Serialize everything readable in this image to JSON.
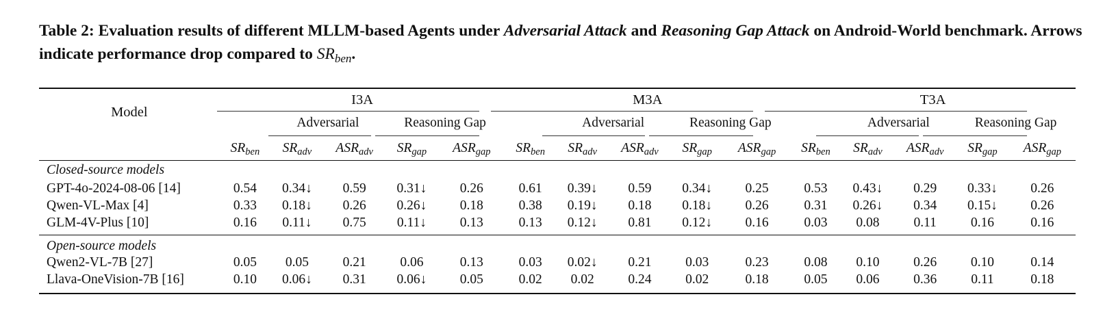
{
  "caption": {
    "label": "Table 2:",
    "p1": "Evaluation results of different MLLM-based Agents under",
    "em1": "Adversarial Attack",
    "p2": "and",
    "em2": "Reasoning Gap Attack",
    "p3": "on Android-World benchmark. Arrows indicate performance drop compared to",
    "sr_main": "SR",
    "sr_sub": "ben",
    "p4": "."
  },
  "table": {
    "model_header": "Model",
    "groups": [
      "I3A",
      "M3A",
      "T3A"
    ],
    "attack_headers": [
      "Adversarial",
      "Reasoning Gap"
    ],
    "column_headers": [
      {
        "main": "SR",
        "sub": "ben"
      },
      {
        "main": "SR",
        "sub": "adv"
      },
      {
        "main": "ASR",
        "sub": "adv"
      },
      {
        "main": "SR",
        "sub": "gap"
      },
      {
        "main": "ASR",
        "sub": "gap"
      }
    ],
    "arrow": "↓",
    "sections": [
      {
        "title": "Closed-source models",
        "rows": [
          {
            "model": "GPT-4o-2024-08-06 [14]",
            "cells": [
              {
                "v": "0.54"
              },
              {
                "v": "0.34",
                "drop": true
              },
              {
                "v": "0.59"
              },
              {
                "v": "0.31",
                "drop": true
              },
              {
                "v": "0.26"
              },
              {
                "v": "0.61"
              },
              {
                "v": "0.39",
                "drop": true
              },
              {
                "v": "0.59"
              },
              {
                "v": "0.34",
                "drop": true
              },
              {
                "v": "0.25"
              },
              {
                "v": "0.53"
              },
              {
                "v": "0.43",
                "drop": true
              },
              {
                "v": "0.29"
              },
              {
                "v": "0.33",
                "drop": true
              },
              {
                "v": "0.26"
              }
            ]
          },
          {
            "model": "Qwen-VL-Max [4]",
            "cells": [
              {
                "v": "0.33"
              },
              {
                "v": "0.18",
                "drop": true
              },
              {
                "v": "0.26"
              },
              {
                "v": "0.26",
                "drop": true
              },
              {
                "v": "0.18"
              },
              {
                "v": "0.38"
              },
              {
                "v": "0.19",
                "drop": true
              },
              {
                "v": "0.18"
              },
              {
                "v": "0.18",
                "drop": true
              },
              {
                "v": "0.26"
              },
              {
                "v": "0.31"
              },
              {
                "v": "0.26",
                "drop": true
              },
              {
                "v": "0.34"
              },
              {
                "v": "0.15",
                "drop": true
              },
              {
                "v": "0.26"
              }
            ]
          },
          {
            "model": "GLM-4V-Plus [10]",
            "cells": [
              {
                "v": "0.16"
              },
              {
                "v": "0.11",
                "drop": true
              },
              {
                "v": "0.75"
              },
              {
                "v": "0.11",
                "drop": true
              },
              {
                "v": "0.13"
              },
              {
                "v": "0.13"
              },
              {
                "v": "0.12",
                "drop": true
              },
              {
                "v": "0.81"
              },
              {
                "v": "0.12",
                "drop": true
              },
              {
                "v": "0.16"
              },
              {
                "v": "0.03"
              },
              {
                "v": "0.08"
              },
              {
                "v": "0.11"
              },
              {
                "v": "0.16"
              },
              {
                "v": "0.16"
              }
            ]
          }
        ]
      },
      {
        "title": "Open-source models",
        "rows": [
          {
            "model": "Qwen2-VL-7B [27]",
            "cells": [
              {
                "v": "0.05"
              },
              {
                "v": "0.05"
              },
              {
                "v": "0.21"
              },
              {
                "v": "0.06"
              },
              {
                "v": "0.13"
              },
              {
                "v": "0.03"
              },
              {
                "v": "0.02",
                "drop": true
              },
              {
                "v": "0.21"
              },
              {
                "v": "0.03"
              },
              {
                "v": "0.23"
              },
              {
                "v": "0.08"
              },
              {
                "v": "0.10"
              },
              {
                "v": "0.26"
              },
              {
                "v": "0.10"
              },
              {
                "v": "0.14"
              }
            ]
          },
          {
            "model": "Llava-OneVision-7B [16]",
            "cells": [
              {
                "v": "0.10"
              },
              {
                "v": "0.06",
                "drop": true
              },
              {
                "v": "0.31"
              },
              {
                "v": "0.06",
                "drop": true
              },
              {
                "v": "0.05"
              },
              {
                "v": "0.02"
              },
              {
                "v": "0.02"
              },
              {
                "v": "0.24"
              },
              {
                "v": "0.02"
              },
              {
                "v": "0.18"
              },
              {
                "v": "0.05"
              },
              {
                "v": "0.06"
              },
              {
                "v": "0.36"
              },
              {
                "v": "0.11"
              },
              {
                "v": "0.18"
              }
            ]
          }
        ]
      }
    ]
  }
}
